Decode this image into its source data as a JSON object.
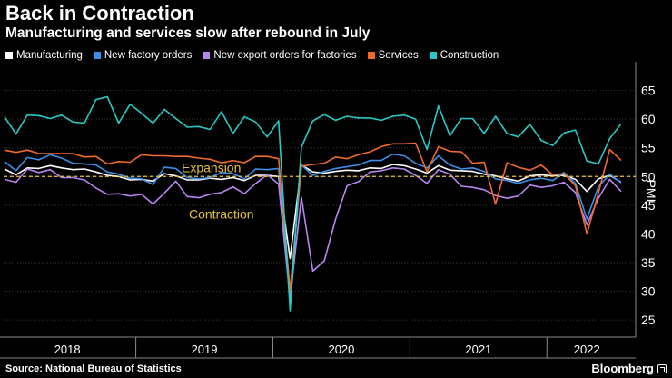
{
  "header": {
    "title": "Back in Contraction",
    "subtitle": "Manufacturing and services slow after rebound in July"
  },
  "source": "Source: National Bureau of Statistics",
  "brand": "Bloomberg",
  "chart_data": {
    "type": "line",
    "ylabel": "PMI",
    "ylim": [
      22,
      70
    ],
    "yticks": [
      25,
      30,
      35,
      40,
      45,
      50,
      55,
      60,
      65
    ],
    "year_labels": [
      "2018",
      "2019",
      "2020",
      "2021",
      "2022"
    ],
    "x_start": "2018-01",
    "reference_line": {
      "value": 50,
      "label_above": "Expansion",
      "label_below": "Contraction",
      "color": "#e8c13a"
    },
    "series": [
      {
        "name": "Manufacturing",
        "color": "#ffffff",
        "values": [
          51.3,
          50.3,
          51.5,
          51.4,
          51.9,
          51.5,
          51.2,
          51.3,
          50.8,
          50.2,
          50.0,
          49.4,
          49.5,
          49.2,
          50.5,
          50.1,
          49.4,
          49.4,
          49.7,
          49.5,
          49.8,
          49.3,
          50.2,
          50.2,
          50.0,
          35.7,
          52.0,
          50.8,
          50.6,
          50.9,
          51.1,
          51.0,
          51.5,
          51.4,
          52.1,
          51.9,
          51.3,
          50.6,
          51.9,
          51.1,
          51.0,
          50.9,
          50.4,
          50.1,
          49.6,
          49.2,
          50.1,
          50.3,
          50.1,
          50.2,
          49.5,
          47.4,
          49.6,
          50.2,
          49.0
        ]
      },
      {
        "name": "New factory orders",
        "color": "#3a8fe8",
        "values": [
          52.6,
          51.0,
          53.3,
          52.9,
          53.8,
          53.2,
          52.3,
          52.2,
          52.0,
          50.8,
          50.4,
          49.7,
          49.6,
          48.6,
          51.6,
          51.4,
          49.8,
          49.6,
          49.8,
          50.7,
          50.5,
          49.6,
          51.3,
          51.2,
          51.4,
          29.3,
          52.0,
          50.2,
          50.9,
          51.4,
          51.7,
          52.0,
          52.8,
          52.8,
          53.9,
          53.6,
          52.3,
          51.5,
          53.6,
          52.0,
          51.3,
          51.5,
          50.9,
          49.6,
          49.3,
          48.8,
          49.4,
          49.7,
          49.3,
          50.7,
          48.8,
          42.6,
          48.2,
          50.4,
          48.9
        ]
      },
      {
        "name": "New export orders for factories",
        "color": "#b884f0",
        "values": [
          49.5,
          49.0,
          51.3,
          50.7,
          51.2,
          49.8,
          49.8,
          49.4,
          48.0,
          46.9,
          47.0,
          46.6,
          46.9,
          45.2,
          47.1,
          49.2,
          46.5,
          46.3,
          46.9,
          47.2,
          48.2,
          47.0,
          48.8,
          50.3,
          48.7,
          28.7,
          46.4,
          33.5,
          35.3,
          42.6,
          48.4,
          49.1,
          50.8,
          51.0,
          51.5,
          51.3,
          50.2,
          48.8,
          51.2,
          50.4,
          48.3,
          48.1,
          47.7,
          46.7,
          46.2,
          46.6,
          48.5,
          48.1,
          48.4,
          49.0,
          47.2,
          41.6,
          46.2,
          49.5,
          47.4
        ]
      },
      {
        "name": "Services",
        "color": "#f06a2a",
        "values": [
          54.6,
          54.2,
          54.6,
          54.0,
          54.0,
          54.0,
          54.0,
          53.4,
          53.5,
          52.2,
          52.6,
          52.5,
          53.8,
          53.6,
          53.6,
          53.5,
          53.5,
          53.2,
          53.0,
          52.4,
          52.8,
          52.4,
          53.5,
          53.5,
          53.1,
          30.1,
          51.8,
          52.1,
          52.3,
          53.4,
          53.1,
          53.8,
          54.3,
          55.2,
          55.7,
          55.7,
          55.8,
          50.8,
          55.2,
          54.4,
          54.3,
          52.3,
          52.5,
          45.2,
          52.4,
          51.6,
          51.1,
          52.0,
          50.3,
          50.5,
          48.4,
          40.0,
          47.1,
          54.7,
          52.8
        ]
      },
      {
        "name": "Construction",
        "color": "#28c9c4",
        "values": [
          60.4,
          57.4,
          60.7,
          60.6,
          60.1,
          60.7,
          59.5,
          59.3,
          63.4,
          63.9,
          59.3,
          62.6,
          61.0,
          59.3,
          61.7,
          60.1,
          58.6,
          58.7,
          58.2,
          61.3,
          57.5,
          60.4,
          59.5,
          56.9,
          59.7,
          26.6,
          55.1,
          59.7,
          60.8,
          59.8,
          60.5,
          60.2,
          60.2,
          59.8,
          60.5,
          60.7,
          60.0,
          54.7,
          62.3,
          57.1,
          60.1,
          60.1,
          57.5,
          60.5,
          57.5,
          56.9,
          59.1,
          56.3,
          55.4,
          57.6,
          58.1,
          52.7,
          52.2,
          56.6,
          59.2
        ]
      }
    ]
  }
}
